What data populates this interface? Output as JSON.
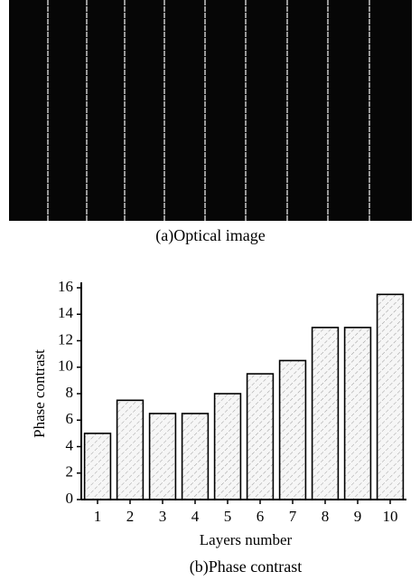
{
  "image_caption": "(a)Optical image",
  "chart_data": {
    "type": "bar",
    "title": "(b)Phase contrast",
    "x_label": "Layers number",
    "y_label": "Phase contrast",
    "categories": [
      "1",
      "2",
      "3",
      "4",
      "5",
      "6",
      "7",
      "8",
      "9",
      "10"
    ],
    "values": [
      5,
      7.5,
      6.5,
      6.5,
      8,
      9.5,
      10.5,
      13,
      13,
      15.5
    ],
    "color": "#f4f4f4",
    "ylim": [
      0,
      16
    ],
    "yticks": [
      0,
      2,
      4,
      6,
      8,
      10,
      12,
      14,
      16
    ],
    "grid": false
  }
}
